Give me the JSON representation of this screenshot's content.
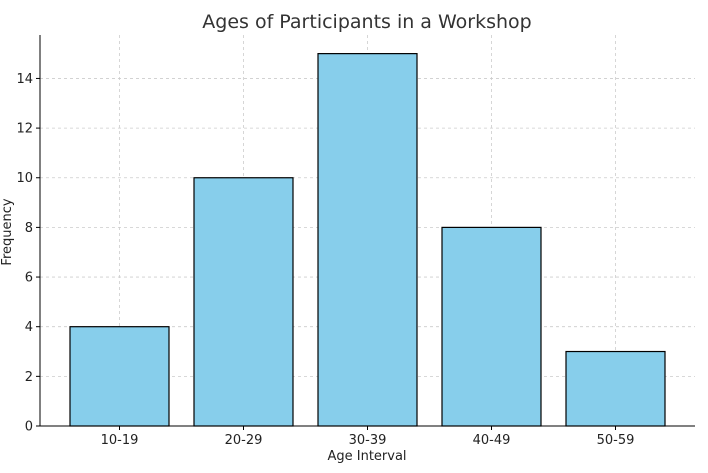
{
  "chart_data": {
    "type": "bar",
    "title": "Ages of Participants in a Workshop",
    "xlabel": "Age Interval",
    "ylabel": "Frequency",
    "categories": [
      "10-19",
      "20-29",
      "30-39",
      "40-49",
      "50-59"
    ],
    "values": [
      4,
      10,
      15,
      8,
      3
    ],
    "ylim": [
      0,
      15.75
    ],
    "yticks": [
      0,
      2,
      4,
      6,
      8,
      10,
      12,
      14
    ],
    "grid": true,
    "legend": "none",
    "bar_color": "#87ceeb",
    "edge_color": "#000000"
  }
}
